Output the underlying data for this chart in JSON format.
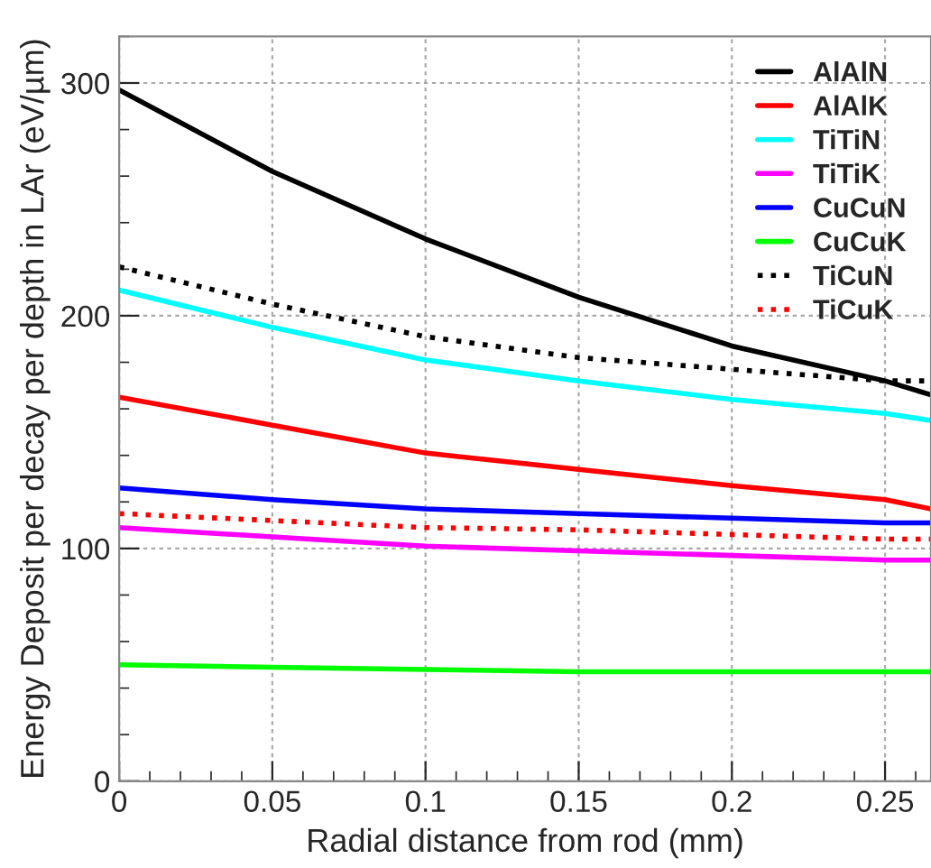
{
  "chart_data": {
    "type": "line",
    "xlabel": "Radial distance from rod (mm)",
    "ylabel": "Energy Deposit per decay per depth in LAr (eV/µm)",
    "x": [
      0,
      0.05,
      0.1,
      0.15,
      0.2,
      0.25,
      0.265
    ],
    "series": [
      {
        "name": "AlAlN",
        "color": "#000000",
        "line_style": "solid",
        "values": [
          297,
          262,
          233,
          208,
          187,
          172,
          166
        ]
      },
      {
        "name": "AlAlK",
        "color": "#ff0000",
        "line_style": "solid",
        "values": [
          165,
          153,
          141,
          134,
          127,
          121,
          117
        ]
      },
      {
        "name": "TiTiN",
        "color": "#00ffff",
        "line_style": "solid",
        "values": [
          211,
          195,
          181,
          172,
          164,
          158,
          155
        ]
      },
      {
        "name": "TiTiK",
        "color": "#ff00ff",
        "line_style": "solid",
        "values": [
          109,
          105,
          101,
          99,
          97,
          95,
          95
        ]
      },
      {
        "name": "CuCuN",
        "color": "#0000ff",
        "line_style": "solid",
        "values": [
          126,
          121,
          117,
          115,
          113,
          111,
          111
        ]
      },
      {
        "name": "CuCuK",
        "color": "#00ff00",
        "line_style": "solid",
        "values": [
          50,
          49,
          48,
          47,
          47,
          47,
          47
        ]
      },
      {
        "name": "TiCuN",
        "color": "#000000",
        "line_style": "dotted",
        "values": [
          221,
          205,
          191,
          182,
          177,
          172,
          172
        ]
      },
      {
        "name": "TiCuK",
        "color": "#ff0000",
        "line_style": "dotted",
        "values": [
          115,
          112,
          109,
          108,
          106,
          104,
          104
        ]
      }
    ],
    "xlim": [
      0,
      0.265
    ],
    "xticks": [
      0,
      0.05,
      0.1,
      0.15,
      0.2,
      0.25
    ],
    "ylim": [
      0,
      320
    ],
    "yticks": [
      0,
      100,
      200,
      300
    ],
    "grid": true,
    "legend": "top right"
  }
}
